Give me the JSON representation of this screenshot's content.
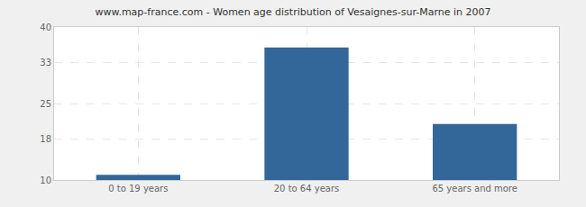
{
  "chart_data": {
    "type": "bar",
    "title": "www.map-france.com - Women age distribution of Vesaignes-sur-Marne in 2007",
    "categories": [
      "0 to 19 years",
      "20 to 64 years",
      "65 years and more"
    ],
    "values": [
      11,
      36,
      21
    ],
    "color": "#336699",
    "ylim": [
      10,
      40
    ],
    "yticks": [
      10,
      18,
      25,
      33,
      40
    ],
    "grid": true
  }
}
